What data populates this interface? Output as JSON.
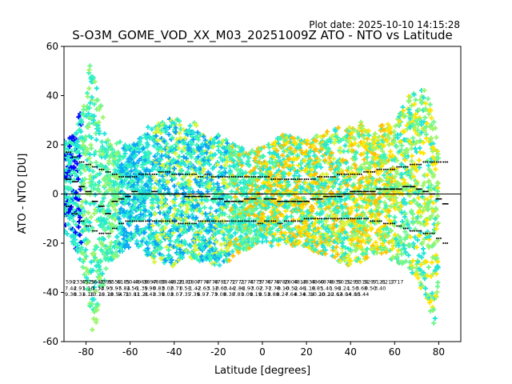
{
  "plot_date": "Plot date: 2025-10-10 14:15:28",
  "chart_data": {
    "type": "scatter",
    "title": "S-O3M_GOME_VOD_XX_M03_20251009Z ATO - NTO vs Latitude",
    "xlabel": "Latitude [degrees]",
    "ylabel": "ATO - NTO [DU]",
    "xlim": [
      -90,
      90
    ],
    "ylim": [
      -60,
      60
    ],
    "xticks": [
      -80,
      -60,
      -40,
      -20,
      0,
      20,
      40,
      60,
      80
    ],
    "yticks": [
      -60,
      -40,
      -20,
      0,
      20,
      40,
      60
    ],
    "grid": false,
    "zero_line": 0,
    "colors": {
      "blue": "#0000ff",
      "sky": "#0aa6f5",
      "cyan": "#22e6d8",
      "aqua_green": "#3cf5b5",
      "mint": "#6ff78f",
      "green": "#9cf56a",
      "yellow_green": "#d8f53a",
      "yellow": "#ffe600",
      "orange": "#ffc200",
      "line": "#000000"
    },
    "envelope": {
      "lat": [
        -90,
        -85,
        -80,
        -78,
        -76,
        -74,
        -72,
        -70,
        -65,
        -60,
        -55,
        -50,
        -45,
        -40,
        -35,
        -30,
        -25,
        -20,
        -15,
        -10,
        -5,
        0,
        5,
        10,
        15,
        20,
        25,
        30,
        35,
        40,
        45,
        50,
        55,
        60,
        65,
        70,
        75,
        78,
        80
      ],
      "upper": [
        22,
        25,
        45,
        58,
        52,
        40,
        30,
        22,
        22,
        20,
        24,
        30,
        30,
        32,
        28,
        30,
        22,
        25,
        22,
        20,
        18,
        20,
        22,
        25,
        24,
        22,
        25,
        26,
        28,
        28,
        30,
        25,
        30,
        28,
        40,
        45,
        42,
        30,
        15
      ],
      "lower": [
        -15,
        -22,
        -35,
        -55,
        -58,
        -45,
        -38,
        -30,
        -25,
        -22,
        -22,
        -28,
        -30,
        -30,
        -25,
        -28,
        -28,
        -30,
        -28,
        -25,
        -22,
        -20,
        -22,
        -20,
        -22,
        -22,
        -25,
        -25,
        -28,
        -30,
        -28,
        -25,
        -25,
        -28,
        -30,
        -35,
        -45,
        -55,
        -40
      ]
    },
    "median_lat": [
      -88,
      -85,
      -82,
      -79,
      -76,
      -73,
      -70,
      -67,
      -64,
      -61,
      -58,
      -55,
      -52,
      -49,
      -46,
      -43,
      -40,
      -37,
      -34,
      -31,
      -28,
      -25,
      -22,
      -19,
      -16,
      -13,
      -10,
      -7,
      -4,
      -1,
      2,
      5,
      8,
      11,
      14,
      17,
      20,
      23,
      26,
      29,
      32,
      35,
      38,
      41,
      44,
      47,
      50,
      53,
      56,
      59,
      62,
      65,
      68,
      71,
      74,
      77,
      80,
      83
    ],
    "median": [
      6,
      5,
      3,
      1,
      -3,
      -5,
      -8,
      -3,
      -2,
      -1,
      1,
      0,
      0,
      1,
      0,
      0,
      0,
      0,
      -1,
      -1,
      -1,
      -1,
      -2,
      -2,
      -3,
      -3,
      -3,
      -2,
      -2,
      0,
      -2,
      -2,
      -3,
      -3,
      -3,
      -3,
      -3,
      -2,
      -2,
      -1,
      -1,
      -1,
      0,
      1,
      1,
      1,
      1,
      2,
      2,
      2,
      2,
      3,
      3,
      2,
      1,
      0,
      -2,
      -4
    ],
    "upper_pct": [
      17,
      15,
      13,
      12,
      11,
      10,
      9,
      8,
      7,
      7,
      7,
      8,
      8,
      8,
      9,
      9,
      8,
      8,
      8,
      8,
      7,
      8,
      7,
      7,
      7,
      7,
      7,
      7,
      7,
      7,
      7,
      6,
      6,
      6,
      6,
      6,
      6,
      6,
      7,
      7,
      7,
      8,
      8,
      8,
      8,
      9,
      9,
      10,
      10,
      10,
      11,
      11,
      12,
      12,
      13,
      13,
      13,
      13
    ],
    "lower_pct": [
      -5,
      -8,
      -11,
      -13,
      -15,
      -16,
      -16,
      -14,
      -12,
      -11,
      -11,
      -11,
      -11,
      -11,
      -11,
      -11,
      -11,
      -12,
      -12,
      -12,
      -11,
      -11,
      -11,
      -11,
      -11,
      -11,
      -11,
      -11,
      -11,
      -12,
      -11,
      -11,
      -12,
      -11,
      -11,
      -11,
      -10,
      -10,
      -10,
      -10,
      -10,
      -10,
      -10,
      -10,
      -10,
      -10,
      -11,
      -11,
      -12,
      -12,
      -13,
      -14,
      -15,
      -15,
      -16,
      -16,
      -18,
      -20
    ],
    "bin_stats": {
      "lat": [
        -87,
        -83,
        -79,
        -75,
        -71,
        -67,
        -63,
        -59,
        -55,
        -51,
        -47,
        -43,
        -39,
        -35,
        -31,
        -27,
        -23,
        -19,
        -15,
        -11,
        -7,
        -3,
        1,
        5,
        9,
        13,
        17,
        21,
        25,
        29,
        33,
        37,
        41,
        45,
        49,
        53,
        57,
        61,
        65,
        69,
        73,
        77,
        81
      ],
      "count": [
        "590",
        "2337",
        "4325",
        "5643",
        "4396",
        "5550",
        "6185",
        "5044",
        "4966",
        "3897",
        "4880",
        "3848",
        "4828",
        "2180",
        "1807",
        "4779",
        "4778",
        "4791",
        "1772",
        "1771",
        "2774",
        "4773",
        "3776",
        "4779",
        "4780",
        "2804",
        "4813",
        "4834",
        "4860",
        "4878",
        "4939",
        "5015",
        "5293",
        "5318",
        "5297",
        "5121",
        "6217",
        "1717",
        "",
        "",
        "",
        "",
        ""
      ],
      "mean": [
        "7.44",
        "2.91",
        "1.10",
        "-1.34",
        "-3.95",
        "-3.97",
        "-5.84",
        "1.56",
        "-1.39",
        "1.90",
        "0.83",
        "0.02",
        "0.71",
        "0.51",
        "-1.42",
        "-2.63",
        "-3.12",
        "-0.63",
        "0.44",
        "-2.86",
        "-2.97",
        "-3.02",
        "-2.71",
        "-2.78",
        "-0.10",
        "-0.52",
        "0.46",
        "-1.18",
        "0.85",
        "1.40",
        "1.96",
        "2.24",
        "1.56",
        "3.68",
        "0.50",
        "-3.40",
        "",
        "",
        "",
        "",
        "",
        "",
        ""
      ],
      "sd": [
        "9.30",
        "8.31",
        "4.18",
        "13.76",
        "13.78",
        "10.54",
        "9.71",
        "10.81",
        "11.21",
        "8.41",
        "8.39",
        "8.03",
        "8.07",
        "7.35",
        "7.39",
        "6.97",
        "7.73",
        "9.08",
        "8.38",
        "7.81",
        "9.09",
        "8.19",
        "8.53",
        "8.88",
        "8.24",
        "7.64",
        "8.34",
        "8.34",
        "10.20",
        "10.20",
        "12.63",
        "14.04",
        "14.80",
        "15.44",
        "",
        "",
        "",
        "",
        "",
        "",
        "",
        "",
        ""
      ]
    }
  }
}
